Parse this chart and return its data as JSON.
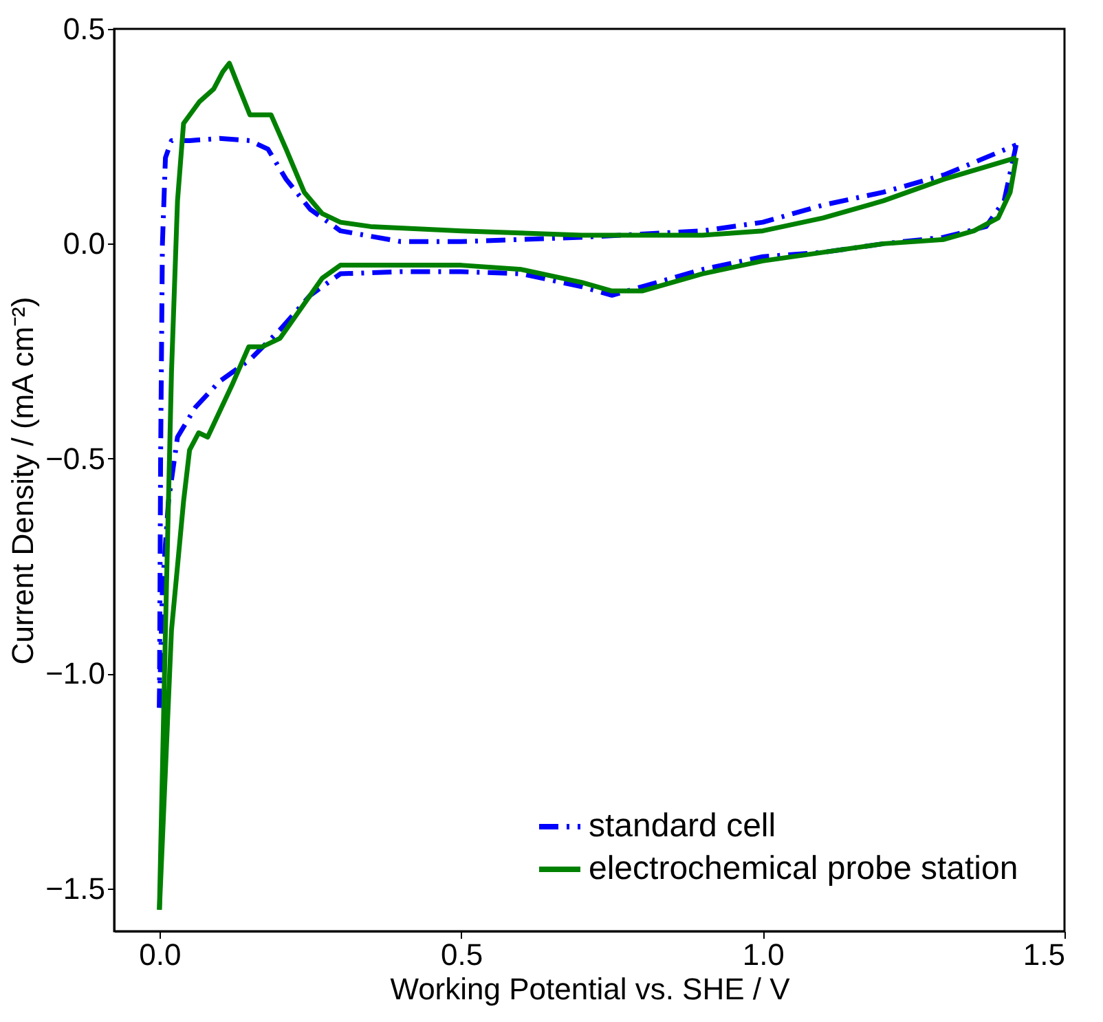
{
  "chart_data": {
    "type": "line",
    "xlabel": "Working Potential vs. SHE / V",
    "ylabel": "Current Density / (mA cm⁻²)",
    "xlim": [
      -0.075,
      1.5
    ],
    "ylim": [
      -1.6,
      0.5
    ],
    "xticks": [
      {
        "value": 0,
        "label": "0.0"
      },
      {
        "value": 0.5,
        "label": "0.5"
      },
      {
        "value": 1,
        "label": "1.0"
      },
      {
        "value": 1.5,
        "label": "1.5"
      }
    ],
    "yticks": [
      {
        "value": -1.5,
        "label": "−1.5"
      },
      {
        "value": -1,
        "label": "−1.0"
      },
      {
        "value": -0.5,
        "label": "−0.5"
      },
      {
        "value": 0,
        "label": "0.0"
      },
      {
        "value": 0.5,
        "label": "0.5"
      }
    ],
    "legend": "bottom right",
    "grid": false,
    "series": [
      {
        "name": "standard cell",
        "color": "#0000ff",
        "line_style": "dashed",
        "x": [
          0.0,
          0.002,
          0.005,
          0.01,
          0.02,
          0.05,
          0.1,
          0.15,
          0.18,
          0.21,
          0.25,
          0.3,
          0.4,
          0.5,
          0.7,
          0.9,
          1.0,
          1.1,
          1.2,
          1.3,
          1.42
        ],
        "values": [
          -1.08,
          -0.5,
          0.0,
          0.2,
          0.24,
          0.24,
          0.245,
          0.24,
          0.22,
          0.15,
          0.08,
          0.03,
          0.005,
          0.005,
          0.015,
          0.03,
          0.05,
          0.09,
          0.12,
          0.16,
          0.23
        ]
      },
      {
        "color": "#0000ff",
        "line_style": "dashed",
        "x": [
          1.42,
          1.4,
          1.37,
          1.3,
          1.2,
          1.1,
          1.0,
          0.9,
          0.8,
          0.75,
          0.7,
          0.6,
          0.5,
          0.4,
          0.3,
          0.25,
          0.2,
          0.15,
          0.1,
          0.06,
          0.03,
          0.015,
          0.005,
          0.0
        ],
        "values": [
          0.23,
          0.1,
          0.04,
          0.015,
          0.0,
          -0.02,
          -0.03,
          -0.06,
          -0.1,
          -0.12,
          -0.1,
          -0.07,
          -0.065,
          -0.065,
          -0.07,
          -0.12,
          -0.2,
          -0.27,
          -0.32,
          -0.38,
          -0.45,
          -0.6,
          -0.8,
          -1.08
        ]
      },
      {
        "name": "electrochemical probe station",
        "color": "#008000",
        "line_style": "solid",
        "x": [
          0.0,
          0.01,
          0.02,
          0.03,
          0.04,
          0.066,
          0.09,
          0.105,
          0.116,
          0.13,
          0.15,
          0.16,
          0.185,
          0.21,
          0.24,
          0.27,
          0.3,
          0.35,
          0.5,
          0.7,
          0.9,
          1.0,
          1.1,
          1.2,
          1.3,
          1.42
        ],
        "values": [
          -1.55,
          -0.9,
          -0.3,
          0.1,
          0.28,
          0.33,
          0.36,
          0.4,
          0.42,
          0.37,
          0.3,
          0.3,
          0.3,
          0.22,
          0.12,
          0.07,
          0.05,
          0.04,
          0.03,
          0.02,
          0.02,
          0.03,
          0.06,
          0.1,
          0.15,
          0.2
        ]
      },
      {
        "color": "#008000",
        "line_style": "solid",
        "x": [
          1.42,
          1.41,
          1.39,
          1.35,
          1.3,
          1.2,
          1.1,
          1.0,
          0.9,
          0.8,
          0.75,
          0.7,
          0.6,
          0.5,
          0.4,
          0.3,
          0.27,
          0.24,
          0.2,
          0.17,
          0.148,
          0.12,
          0.09,
          0.08,
          0.065,
          0.05,
          0.04,
          0.02,
          0.0
        ],
        "values": [
          0.2,
          0.12,
          0.06,
          0.03,
          0.01,
          0.0,
          -0.02,
          -0.04,
          -0.07,
          -0.11,
          -0.11,
          -0.09,
          -0.06,
          -0.05,
          -0.05,
          -0.05,
          -0.08,
          -0.14,
          -0.22,
          -0.24,
          -0.24,
          -0.33,
          -0.42,
          -0.45,
          -0.44,
          -0.48,
          -0.6,
          -0.9,
          -1.55
        ]
      }
    ]
  }
}
